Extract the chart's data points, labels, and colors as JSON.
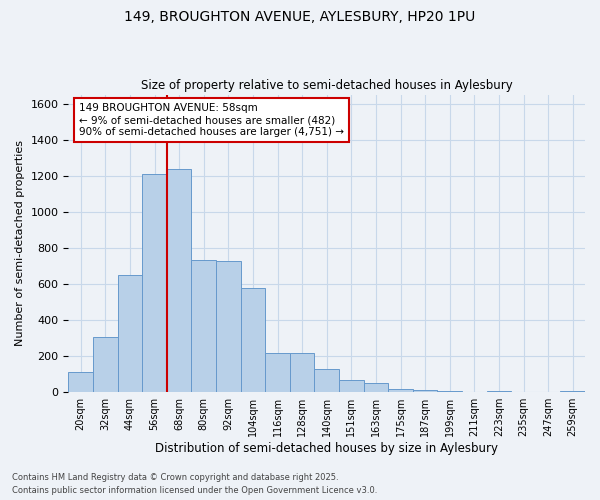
{
  "title1": "149, BROUGHTON AVENUE, AYLESBURY, HP20 1PU",
  "title2": "Size of property relative to semi-detached houses in Aylesbury",
  "xlabel": "Distribution of semi-detached houses by size in Aylesbury",
  "ylabel": "Number of semi-detached properties",
  "categories": [
    "20sqm",
    "32sqm",
    "44sqm",
    "56sqm",
    "68sqm",
    "80sqm",
    "92sqm",
    "104sqm",
    "116sqm",
    "128sqm",
    "140sqm",
    "151sqm",
    "163sqm",
    "175sqm",
    "187sqm",
    "199sqm",
    "211sqm",
    "223sqm",
    "235sqm",
    "247sqm",
    "259sqm"
  ],
  "values": [
    110,
    305,
    650,
    1210,
    1240,
    735,
    730,
    575,
    220,
    220,
    130,
    65,
    50,
    20,
    10,
    8,
    0,
    5,
    0,
    0,
    5
  ],
  "bar_color": "#b8d0e8",
  "bar_edge_color": "#6699cc",
  "vline_x_index": 3.5,
  "vline_color": "#cc0000",
  "annotation_box_color": "#cc0000",
  "property_label": "149 BROUGHTON AVENUE: 58sqm",
  "smaller_pct": "9%",
  "smaller_count": 482,
  "larger_pct": "90%",
  "larger_count": 4751,
  "bg_color": "#eef2f7",
  "grid_color": "#c8d8ea",
  "ylim": [
    0,
    1650
  ],
  "footnote1": "Contains HM Land Registry data © Crown copyright and database right 2025.",
  "footnote2": "Contains public sector information licensed under the Open Government Licence v3.0."
}
